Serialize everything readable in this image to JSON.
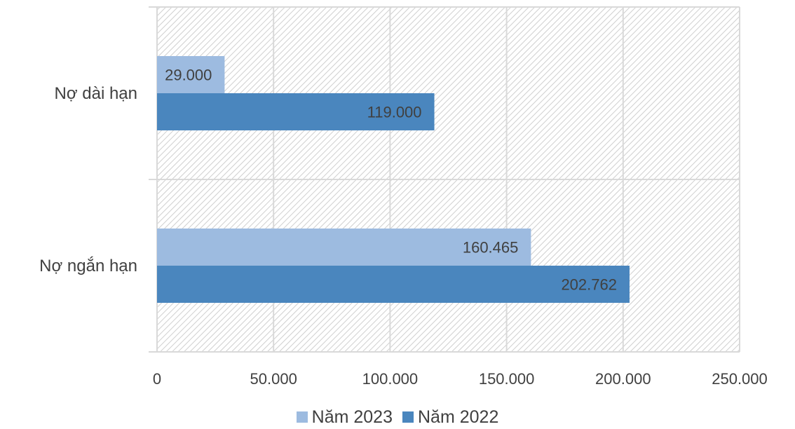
{
  "chart_data": {
    "type": "bar",
    "orientation": "horizontal",
    "categories": [
      "Nợ dài hạn",
      "Nợ ngắn hạn"
    ],
    "series": [
      {
        "name": "Năm 2023",
        "values": [
          29000,
          160465
        ],
        "labels": [
          "29.000",
          "160.465"
        ],
        "color": "#9DBBE0"
      },
      {
        "name": "Năm 2022",
        "values": [
          119000,
          202762
        ],
        "labels": [
          "119.000",
          "202.762"
        ],
        "color": "#4A86BE"
      }
    ],
    "xlim": [
      0,
      250000
    ],
    "x_ticks": [
      0,
      50000,
      100000,
      150000,
      200000,
      250000
    ],
    "x_tick_labels": [
      "0",
      "50.000",
      "100.000",
      "150.000",
      "200.000",
      "250.000"
    ],
    "grid": true,
    "plot_background": "hatched",
    "legend_position": "bottom"
  }
}
